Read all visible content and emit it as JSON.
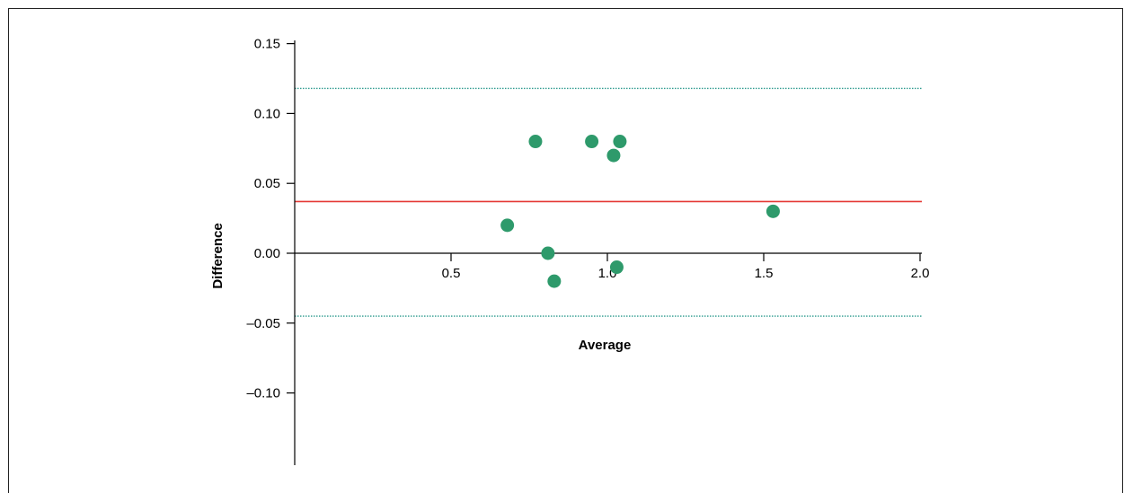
{
  "chart_data": {
    "type": "scatter",
    "title": "",
    "xlabel": "Average",
    "ylabel": "Difference",
    "xlim": [
      0,
      2.0
    ],
    "ylim": [
      -0.15,
      0.15
    ],
    "x_ticks": [
      0.5,
      1.0,
      1.5,
      2.0
    ],
    "x_tick_labels": [
      "0.5",
      "1.0",
      "1.5",
      "2.0"
    ],
    "y_ticks": [
      0.15,
      0.1,
      0.05,
      0.0,
      -0.05,
      -0.1
    ],
    "y_tick_labels": [
      "0.15",
      "0.10",
      "0.05",
      "0.00",
      "–0.05",
      "–0.10"
    ],
    "grid": false,
    "legend": "none",
    "points": [
      {
        "x": 0.68,
        "y": 0.02
      },
      {
        "x": 0.77,
        "y": 0.08
      },
      {
        "x": 0.81,
        "y": 0.0
      },
      {
        "x": 0.83,
        "y": -0.02
      },
      {
        "x": 0.95,
        "y": 0.08
      },
      {
        "x": 1.02,
        "y": 0.07
      },
      {
        "x": 1.03,
        "y": -0.01
      },
      {
        "x": 1.04,
        "y": 0.08
      },
      {
        "x": 1.53,
        "y": 0.03
      }
    ],
    "reference_lines": [
      {
        "role": "mean-difference",
        "y": 0.037,
        "style": "solid",
        "color": "#e53935"
      },
      {
        "role": "upper-limit-of-agreement",
        "y": 0.118,
        "style": "dotted",
        "color": "#2e9b8f"
      },
      {
        "role": "lower-limit-of-agreement",
        "y": -0.045,
        "style": "dotted",
        "color": "#2e9b8f"
      }
    ],
    "colors": {
      "points": "#2e9a6b",
      "axis": "#000000"
    }
  }
}
